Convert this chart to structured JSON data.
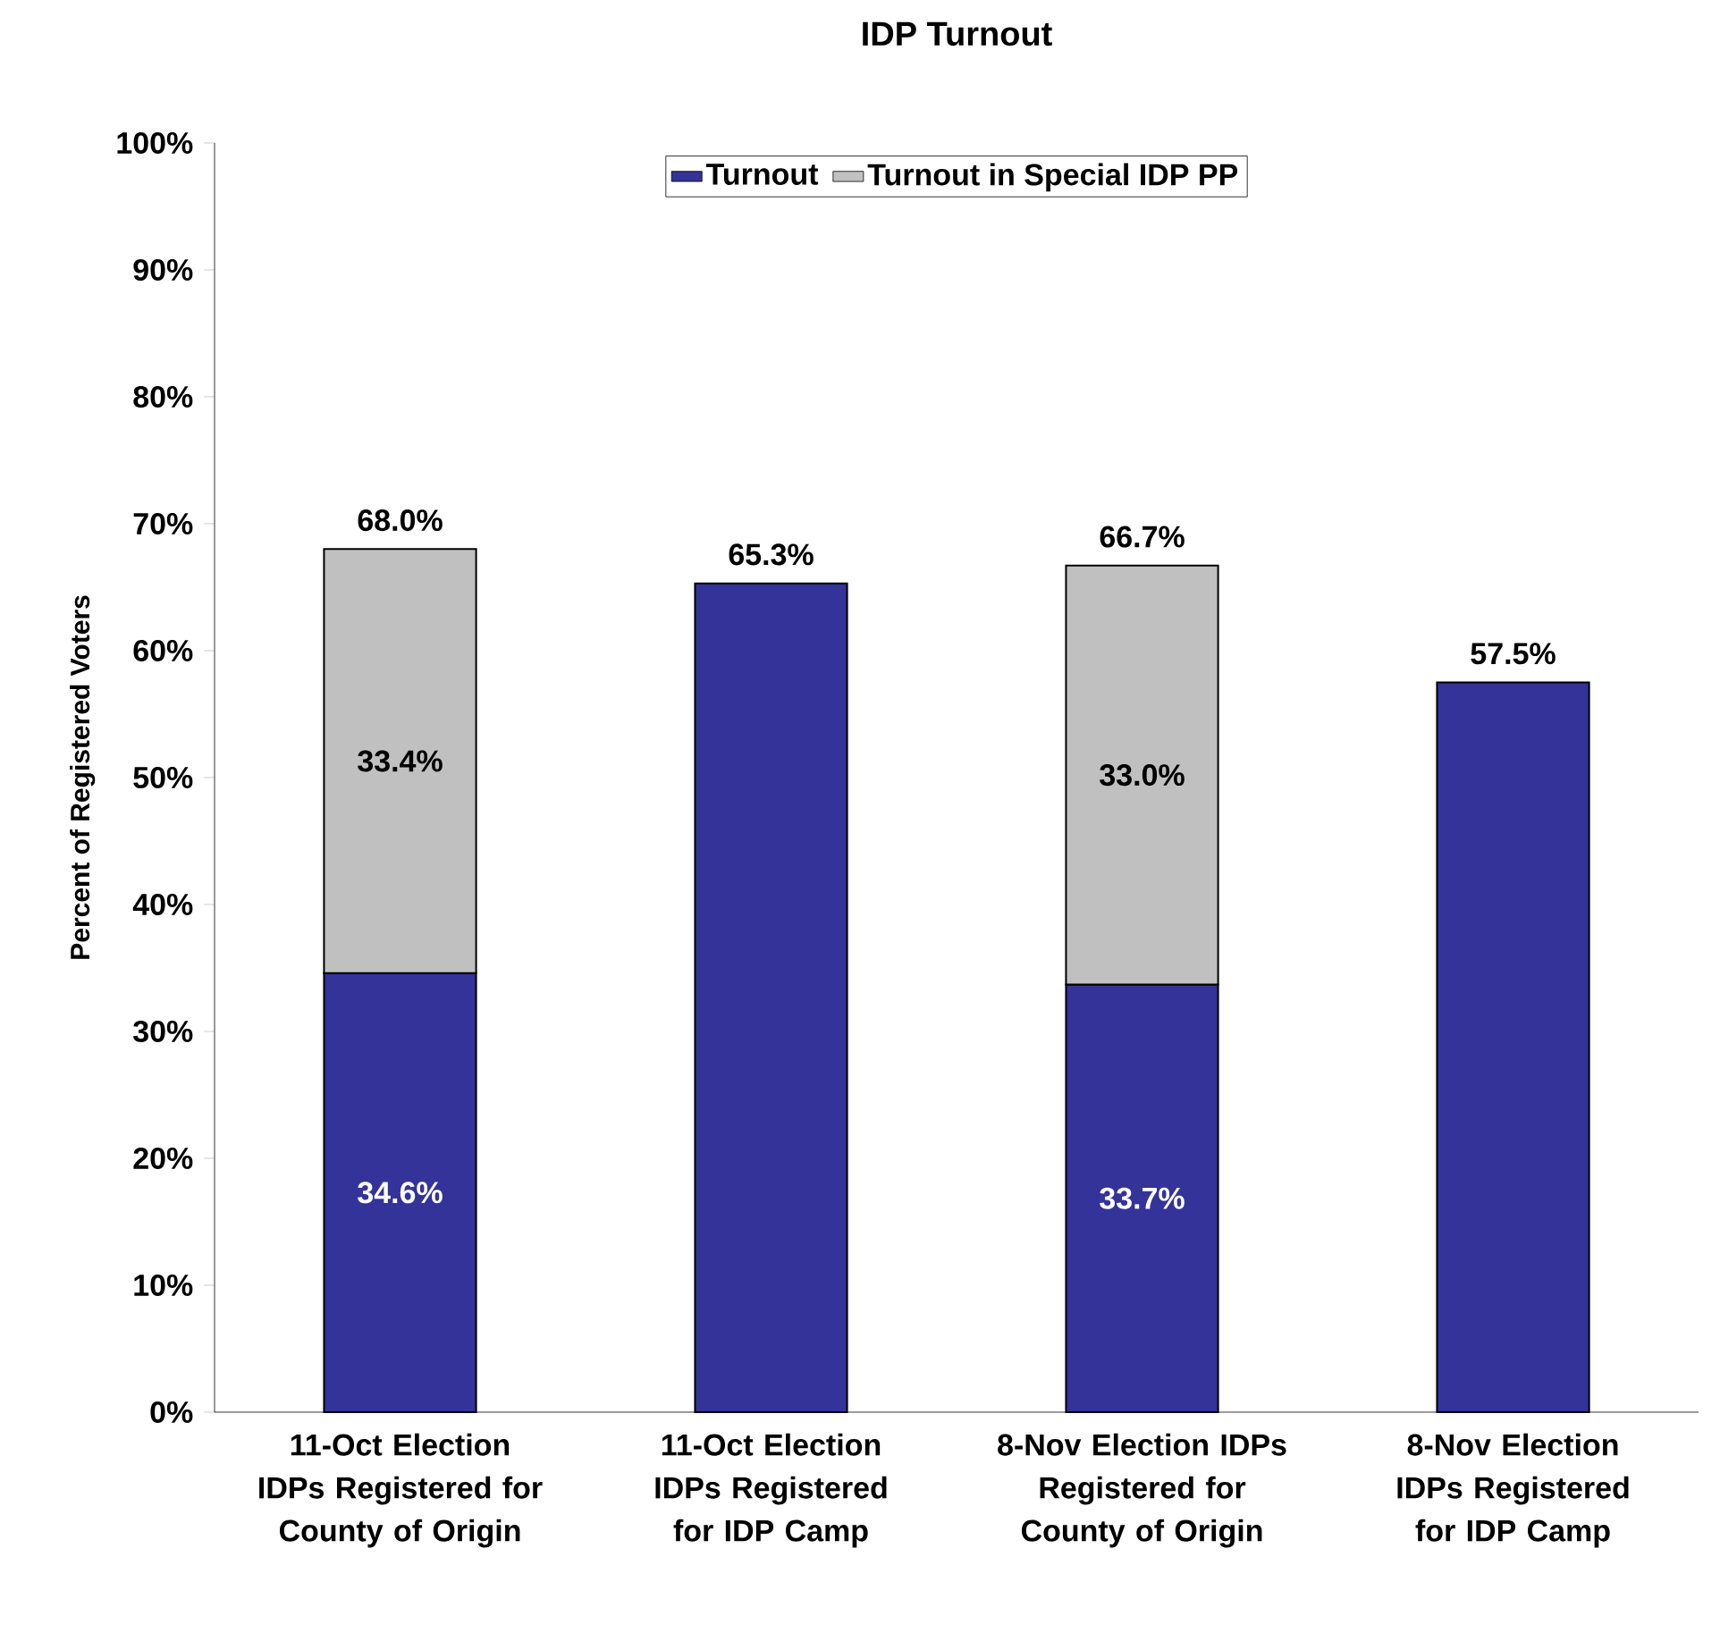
{
  "chart_data": {
    "type": "bar",
    "title": "IDP Turnout",
    "ylabel": "Percent of Registered Voters",
    "categories": [
      "11-Oct Election IDPs Registered for County of Origin",
      "11-Oct Election IDPs Registered for IDP Camp",
      "8-Nov Election IDPs Registered for County of Origin",
      "8-Nov Election IDPs Registered for IDP Camp"
    ],
    "stacked": true,
    "series": [
      {
        "name": "Turnout",
        "color": "#333399",
        "values": [
          34.6,
          65.3,
          33.7,
          57.5
        ],
        "value_labels": [
          "34.6%",
          null,
          "33.7%",
          null
        ]
      },
      {
        "name": "Turnout in Special IDP PP",
        "color": "#c0c0c0",
        "values": [
          33.4,
          null,
          33.0,
          null
        ],
        "value_labels": [
          "33.4%",
          null,
          "33.0%",
          null
        ]
      }
    ],
    "totals": [
      "68.0%",
      "65.3%",
      "66.7%",
      "57.5%"
    ],
    "ylim": [
      0,
      100
    ],
    "yticks": [
      {
        "value": 0,
        "label": "0%"
      },
      {
        "value": 10,
        "label": "10%"
      },
      {
        "value": 20,
        "label": "20%"
      },
      {
        "value": 30,
        "label": "30%"
      },
      {
        "value": 40,
        "label": "40%"
      },
      {
        "value": 50,
        "label": "50%"
      },
      {
        "value": 60,
        "label": "60%"
      },
      {
        "value": 70,
        "label": "70%"
      },
      {
        "value": 80,
        "label": "80%"
      },
      {
        "value": 90,
        "label": "90%"
      },
      {
        "value": 100,
        "label": "100%"
      }
    ],
    "legend": "top",
    "grid": false
  }
}
